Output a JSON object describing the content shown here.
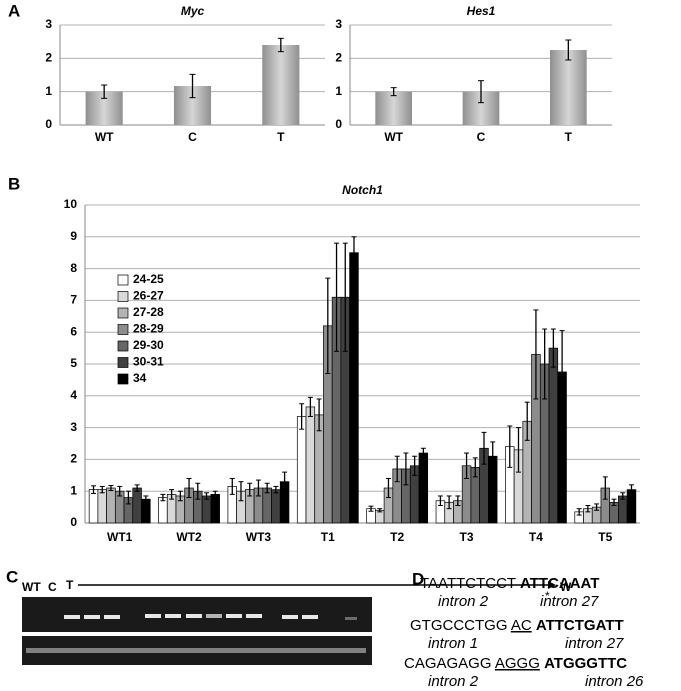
{
  "panel_labels": [
    "A",
    "B",
    "C",
    "D"
  ],
  "chart_data": [
    {
      "type": "bar",
      "title": "Myc",
      "categories": [
        "WT",
        "C",
        "T"
      ],
      "values": [
        1.0,
        1.17,
        2.4
      ],
      "errors": [
        0.2,
        0.35,
        0.2
      ],
      "color": "#b3b3b3",
      "ylim": [
        0,
        3
      ],
      "yticks": [
        0,
        1,
        2,
        3
      ],
      "grid": true
    },
    {
      "type": "bar",
      "title": "Hes1",
      "categories": [
        "WT",
        "C",
        "T"
      ],
      "values": [
        1.0,
        1.0,
        2.25
      ],
      "errors": [
        0.12,
        0.33,
        0.3
      ],
      "color": "#b3b3b3",
      "ylim": [
        0,
        3
      ],
      "yticks": [
        0,
        1,
        2,
        3
      ],
      "grid": true
    },
    {
      "type": "bar",
      "title": "Notch1",
      "categories": [
        "WT1",
        "WT2",
        "WT3",
        "T1",
        "T2",
        "T3",
        "T4",
        "T5"
      ],
      "ylim": [
        0,
        10
      ],
      "yticks": [
        0,
        1,
        2,
        3,
        4,
        5,
        6,
        7,
        8,
        9,
        10
      ],
      "grid": true,
      "legend": "upper-left",
      "series": [
        {
          "name": "24-25",
          "color": "#ffffff",
          "values": [
            1.05,
            0.8,
            1.15,
            3.35,
            0.45,
            0.7,
            2.4,
            0.35
          ],
          "errors": [
            0.12,
            0.1,
            0.25,
            0.4,
            0.08,
            0.15,
            0.65,
            0.1
          ]
        },
        {
          "name": "26-27",
          "color": "#d9d9d9",
          "values": [
            1.05,
            0.9,
            1.0,
            3.65,
            0.4,
            0.65,
            2.3,
            0.45
          ],
          "errors": [
            0.1,
            0.15,
            0.3,
            0.3,
            0.05,
            0.2,
            0.7,
            0.1
          ]
        },
        {
          "name": "27-28",
          "color": "#b3b3b3",
          "values": [
            1.1,
            0.85,
            1.05,
            3.4,
            1.1,
            0.7,
            3.2,
            0.5
          ],
          "errors": [
            0.08,
            0.15,
            0.2,
            0.5,
            0.3,
            0.15,
            0.6,
            0.1
          ]
        },
        {
          "name": "28-29",
          "color": "#8c8c8c",
          "values": [
            1.0,
            1.1,
            1.1,
            6.2,
            1.7,
            1.8,
            5.3,
            1.1
          ],
          "errors": [
            0.15,
            0.3,
            0.25,
            1.5,
            0.4,
            0.4,
            1.4,
            0.35
          ]
        },
        {
          "name": "29-30",
          "color": "#666666",
          "values": [
            0.8,
            1.0,
            1.1,
            7.1,
            1.7,
            1.75,
            5.0,
            0.65
          ],
          "errors": [
            0.2,
            0.25,
            0.15,
            1.7,
            0.5,
            0.3,
            1.1,
            0.1
          ]
        },
        {
          "name": "30-31",
          "color": "#404040",
          "values": [
            1.1,
            0.85,
            1.05,
            7.1,
            1.8,
            2.35,
            5.5,
            0.85
          ],
          "errors": [
            0.1,
            0.1,
            0.1,
            1.7,
            0.3,
            0.5,
            0.6,
            0.1
          ]
        },
        {
          "name": "34",
          "color": "#000000",
          "values": [
            0.75,
            0.9,
            1.3,
            8.5,
            2.2,
            2.1,
            4.75,
            1.05
          ],
          "errors": [
            0.1,
            0.1,
            0.3,
            0.5,
            0.15,
            0.45,
            1.3,
            0.15
          ]
        }
      ]
    }
  ],
  "gel": {
    "lane_labels": [
      "WT",
      "C",
      "T",
      "W"
    ],
    "marker": "*"
  },
  "sequences": [
    {
      "left": "TAATTCTCCT",
      "right": "ATTCAAAT",
      "left_label": "intron 2",
      "right_label": "intron 27"
    },
    {
      "left": "GTGCCCTGG",
      "insert": "AC",
      "right": "ATTCTGATT",
      "left_label": "intron 1",
      "right_label": "intron 27"
    },
    {
      "left": "CAGAGAGG",
      "insert": "AGGG",
      "right": "ATGGGTTC",
      "left_label": "intron 2",
      "right_label": "intron 26"
    }
  ]
}
